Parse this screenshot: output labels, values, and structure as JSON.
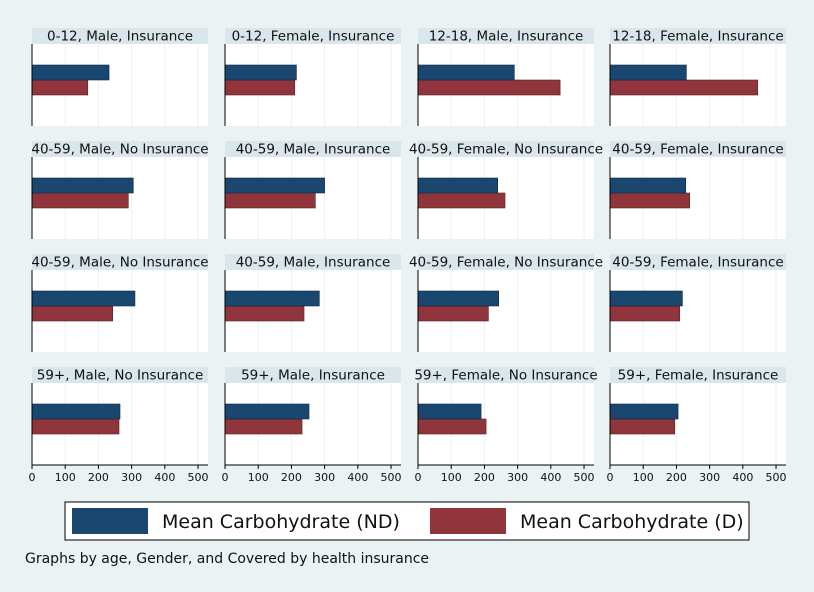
{
  "chart_data": {
    "type": "bar",
    "orientation": "horizontal",
    "layout": "4x4 small multiples",
    "xlim": [
      0,
      530
    ],
    "x_ticks": [
      0,
      100,
      200,
      300,
      400,
      500
    ],
    "grid": true,
    "legend_position": "bottom",
    "legend": [
      {
        "key": "nd",
        "label": "Mean Carbohydrate (ND)",
        "color": "#1a476f"
      },
      {
        "key": "d",
        "label": "Mean Carbohydrate (D)",
        "color": "#90353b"
      }
    ],
    "note": "Graphs by age, Gender, and Covered by health insurance",
    "panels": [
      {
        "title": "0-12, Male, Insurance",
        "nd": 232,
        "d": 168
      },
      {
        "title": "0-12, Female, Insurance",
        "nd": 215,
        "d": 210
      },
      {
        "title": "12-18, Male, Insurance",
        "nd": 290,
        "d": 428
      },
      {
        "title": "12-18, Female, Insurance",
        "nd": 230,
        "d": 445
      },
      {
        "title": "40-59, Male, No Insurance",
        "nd": 305,
        "d": 290
      },
      {
        "title": "40-59, Male, Insurance",
        "nd": 300,
        "d": 272
      },
      {
        "title": "40-59, Female, No Insurance",
        "nd": 240,
        "d": 262
      },
      {
        "title": "40-59, Female, Insurance",
        "nd": 228,
        "d": 240
      },
      {
        "title": "40-59, Male, No Insurance",
        "nd": 310,
        "d": 243
      },
      {
        "title": "40-59, Male, Insurance",
        "nd": 284,
        "d": 238
      },
      {
        "title": "40-59, Female, No Insurance",
        "nd": 243,
        "d": 212
      },
      {
        "title": "40-59, Female, Insurance",
        "nd": 218,
        "d": 210
      },
      {
        "title": "59+, Male, No Insurance",
        "nd": 265,
        "d": 262
      },
      {
        "title": "59+, Male, Insurance",
        "nd": 253,
        "d": 232
      },
      {
        "title": "59+, Female, No Insurance",
        "nd": 190,
        "d": 205
      },
      {
        "title": "59+, Female, Insurance",
        "nd": 205,
        "d": 195
      }
    ]
  }
}
